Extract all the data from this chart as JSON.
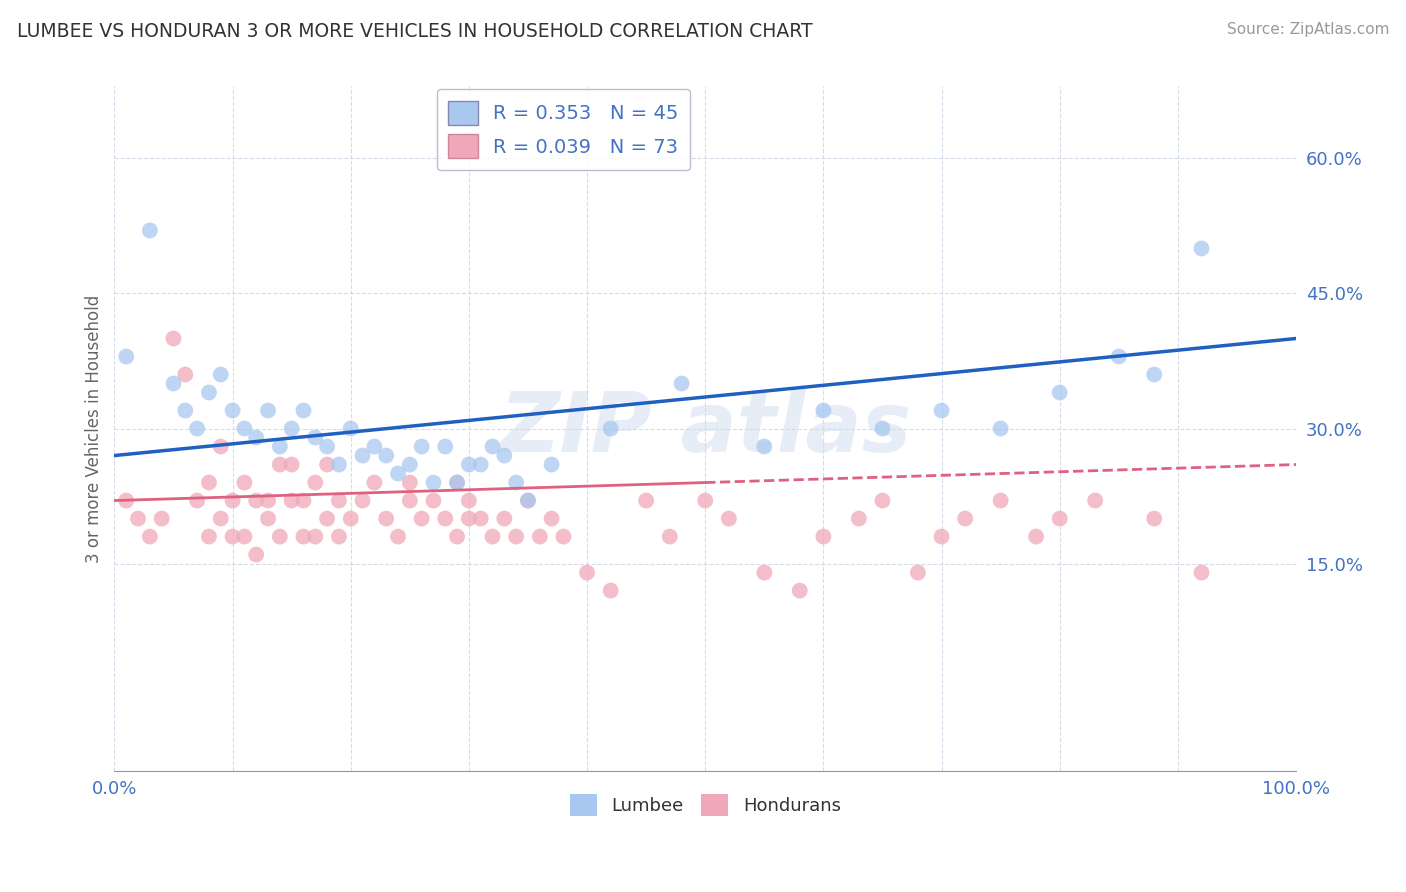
{
  "title": "LUMBEE VS HONDURAN 3 OR MORE VEHICLES IN HOUSEHOLD CORRELATION CHART",
  "source": "Source: ZipAtlas.com",
  "ylabel": "3 or more Vehicles in Household",
  "xlim": [
    0,
    100
  ],
  "ylim": [
    -8,
    68
  ],
  "y_ticks": [
    15,
    30,
    45,
    60
  ],
  "y_tick_labels": [
    "15.0%",
    "30.0%",
    "45.0%",
    "60.0%"
  ],
  "lumbee_R": 0.353,
  "lumbee_N": 45,
  "honduran_R": 0.039,
  "honduran_N": 73,
  "lumbee_color": "#A8C8F0",
  "honduran_color": "#F0A8B8",
  "lumbee_line_color": "#2060C0",
  "honduran_line_color": "#E06080",
  "lumbee_x": [
    1,
    3,
    5,
    6,
    7,
    8,
    9,
    10,
    11,
    12,
    13,
    14,
    15,
    16,
    17,
    18,
    19,
    20,
    21,
    22,
    23,
    24,
    25,
    26,
    27,
    28,
    29,
    30,
    31,
    32,
    33,
    34,
    35,
    37,
    42,
    48,
    55,
    60,
    65,
    70,
    75,
    80,
    85,
    88,
    92
  ],
  "lumbee_y": [
    38,
    52,
    35,
    32,
    30,
    34,
    36,
    32,
    30,
    29,
    32,
    28,
    30,
    32,
    29,
    28,
    26,
    30,
    27,
    28,
    27,
    25,
    26,
    28,
    24,
    28,
    24,
    26,
    26,
    28,
    27,
    24,
    22,
    26,
    30,
    35,
    28,
    32,
    30,
    32,
    30,
    34,
    38,
    36,
    50
  ],
  "honduran_x": [
    1,
    2,
    3,
    4,
    5,
    6,
    7,
    8,
    8,
    9,
    9,
    10,
    10,
    11,
    11,
    12,
    12,
    13,
    13,
    14,
    14,
    15,
    15,
    16,
    16,
    17,
    17,
    18,
    18,
    19,
    19,
    20,
    21,
    22,
    23,
    24,
    25,
    25,
    26,
    27,
    28,
    29,
    29,
    30,
    30,
    31,
    32,
    33,
    34,
    35,
    36,
    37,
    38,
    40,
    42,
    45,
    47,
    50,
    52,
    55,
    58,
    60,
    63,
    65,
    68,
    70,
    72,
    75,
    78,
    80,
    83,
    88,
    92
  ],
  "honduran_y": [
    22,
    20,
    18,
    20,
    40,
    36,
    22,
    24,
    18,
    28,
    20,
    22,
    18,
    24,
    18,
    22,
    16,
    22,
    20,
    26,
    18,
    22,
    26,
    22,
    18,
    24,
    18,
    20,
    26,
    22,
    18,
    20,
    22,
    24,
    20,
    18,
    22,
    24,
    20,
    22,
    20,
    24,
    18,
    20,
    22,
    20,
    18,
    20,
    18,
    22,
    18,
    20,
    18,
    14,
    12,
    22,
    18,
    22,
    20,
    14,
    12,
    18,
    20,
    22,
    14,
    18,
    20,
    22,
    18,
    20,
    22,
    20,
    14
  ],
  "watermark_text": "ZIP atlas"
}
